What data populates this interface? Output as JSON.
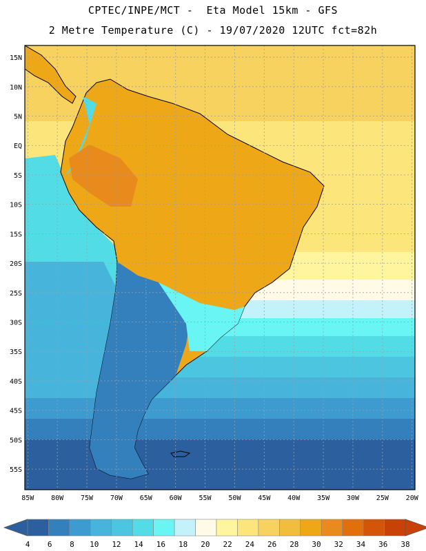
{
  "header": {
    "line1": "CPTEC/INPE/MCT -  Eta Model 15km - GFS",
    "line2": "2 Metre Temperature (C) - 19/07/2020 12UTC fct=82h"
  },
  "axes": {
    "lat_labels": [
      "15N",
      "10N",
      "5N",
      "EQ",
      "5S",
      "10S",
      "15S",
      "20S",
      "25S",
      "30S",
      "35S",
      "40S",
      "45S",
      "50S",
      "55S"
    ],
    "lat_values": [
      15,
      10,
      5,
      0,
      -5,
      -10,
      -15,
      -20,
      -25,
      -30,
      -35,
      -40,
      -45,
      -50,
      -55
    ],
    "lon_labels": [
      "85W",
      "80W",
      "75W",
      "70W",
      "65W",
      "60W",
      "55W",
      "50W",
      "45W",
      "40W",
      "35W",
      "30W",
      "25W",
      "20W"
    ],
    "lon_values": [
      -85,
      -80,
      -75,
      -70,
      -65,
      -60,
      -55,
      -50,
      -45,
      -40,
      -35,
      -30,
      -25,
      -20
    ],
    "lon_range": [
      -85.5,
      -19.5
    ],
    "lat_range": [
      -58.5,
      17
    ]
  },
  "legend": {
    "labels": [
      "4",
      "6",
      "8",
      "10",
      "12",
      "14",
      "16",
      "18",
      "20",
      "22",
      "24",
      "26",
      "28",
      "30",
      "32",
      "34",
      "36",
      "38"
    ],
    "colors": [
      "#2b5f9e",
      "#3380bd",
      "#3d9bcf",
      "#47b4dc",
      "#4cc6e0",
      "#52dde6",
      "#6af5f5",
      "#c4f2fa",
      "#fffbe6",
      "#fff59e",
      "#fce57a",
      "#f8d25e",
      "#f0bd3c",
      "#eda717",
      "#e88a1c",
      "#e16f0c",
      "#d45408",
      "#c84208"
    ],
    "low_arrow_color": "#2b5f9e",
    "high_arrow_color": "#c84208"
  },
  "palette": {
    "ocean_north": "#f8d25e",
    "ocean_south": "#2b5f9e",
    "land_border": "#000000"
  }
}
